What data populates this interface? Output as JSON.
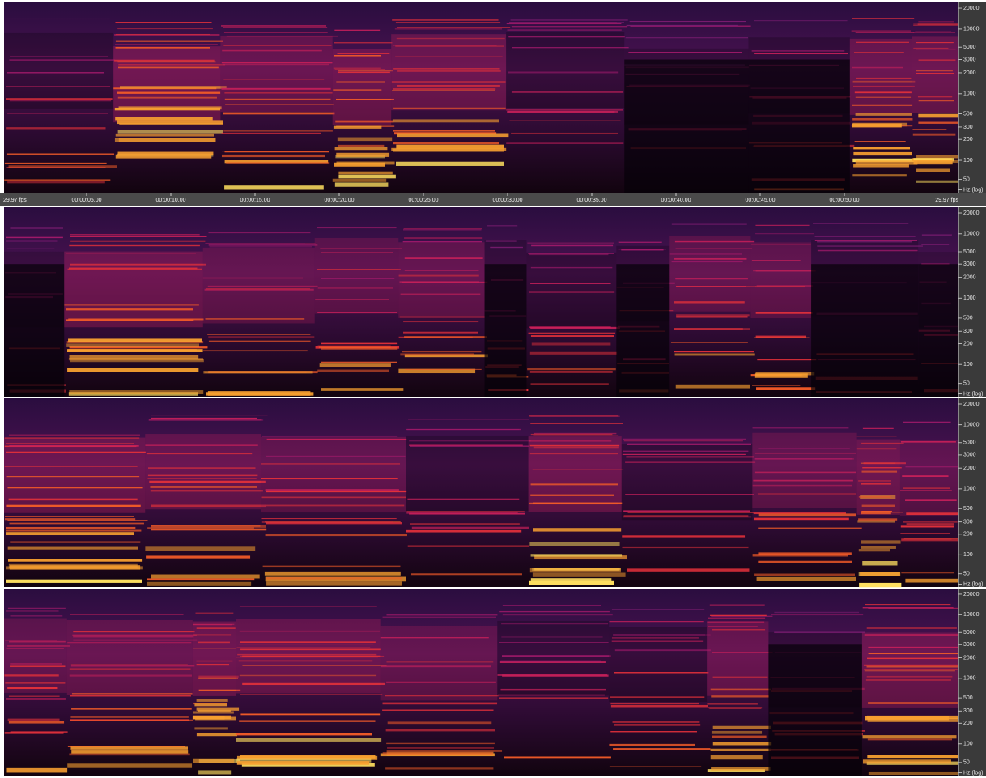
{
  "timeline": {
    "left_label": "29,97 fps",
    "right_label": "29,97 fps",
    "ticks": [
      "00:00:05.00",
      "00:00:10.00",
      "00:00:15.00",
      "00:00:20.00",
      "00:00:25.00",
      "00:00:30.00",
      "00:00:35.00",
      "00:00:40.00",
      "00:00:45.00",
      "00:00:50.00"
    ]
  },
  "panels": [
    {
      "frequency_labels": [
        "20000",
        "10000",
        "5000",
        "3000",
        "2000",
        "1000",
        "500",
        "300",
        "200",
        "100",
        "50",
        "Hz (log)"
      ]
    },
    {
      "frequency_labels": [
        "20000",
        "10000",
        "5000",
        "3000",
        "2000",
        "1000",
        "500",
        "300",
        "200",
        "100",
        "50",
        "Hz (log)"
      ]
    },
    {
      "frequency_labels": [
        "20000",
        "10000",
        "5000",
        "3000",
        "2000",
        "1000",
        "500",
        "300",
        "200",
        "100",
        "50",
        "Hz (log)"
      ]
    },
    {
      "frequency_labels": [
        "20000",
        "10000",
        "5000",
        "3000",
        "2000",
        "1000",
        "500",
        "300",
        "200",
        "100",
        "50",
        "Hz (log)"
      ]
    }
  ]
}
